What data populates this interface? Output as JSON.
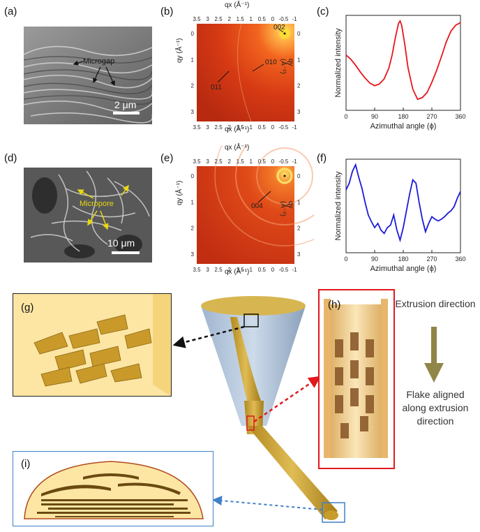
{
  "panel_labels": {
    "a": "(a)",
    "b": "(b)",
    "c": "(c)",
    "d": "(d)",
    "e": "(e)",
    "f": "(f)",
    "g": "(g)",
    "h": "(h)",
    "i": "(i)"
  },
  "sem_a": {
    "annotation": "Microgap",
    "scale": "2 μm"
  },
  "sem_d": {
    "annotation": "Micropore",
    "scale": "10 μm"
  },
  "waxs_b": {
    "xlabel": "qx (Å⁻¹)",
    "ylabel": "qy (Å⁻¹)",
    "xticks": [
      "3.5",
      "3",
      "2.5",
      "2",
      "1.5",
      "1",
      "0.5",
      "0",
      "-0.5",
      "-1"
    ],
    "yticks": [
      "0",
      "1",
      "2",
      "3"
    ],
    "peaks": [
      "002",
      "010",
      "011"
    ]
  },
  "waxs_e": {
    "xlabel": "qx (Å⁻¹)",
    "ylabel": "qy (Å⁻¹)",
    "xticks": [
      "3.5",
      "3",
      "2.5",
      "2",
      "1.5",
      "1",
      "0.5",
      "0",
      "-0.5",
      "-1"
    ],
    "yticks": [
      "0",
      "1",
      "2",
      "3"
    ],
    "peaks": [
      "004"
    ]
  },
  "schematic": {
    "extrusion_label": "Extrusion direction",
    "flake_label": "Flake aligned along extrusion direction"
  },
  "chart_data": [
    {
      "type": "line",
      "panel": "(c)",
      "xlabel": "Azimuthal angle (ϕ)",
      "ylabel": "Normalized intensity",
      "xlim": [
        0,
        360
      ],
      "xticks": [
        "0",
        "90",
        "180",
        "270",
        "360"
      ],
      "color": "#e8151b",
      "x": [
        0,
        15,
        30,
        45,
        60,
        75,
        90,
        105,
        120,
        135,
        145,
        155,
        165,
        170,
        175,
        185,
        195,
        210,
        225,
        240,
        255,
        270,
        285,
        300,
        315,
        330,
        345,
        360
      ],
      "y": [
        0.6,
        0.55,
        0.48,
        0.4,
        0.33,
        0.27,
        0.24,
        0.26,
        0.32,
        0.45,
        0.6,
        0.8,
        0.97,
        1.0,
        0.95,
        0.72,
        0.45,
        0.2,
        0.08,
        0.1,
        0.16,
        0.28,
        0.42,
        0.58,
        0.75,
        0.88,
        0.95,
        0.98
      ]
    },
    {
      "type": "line",
      "panel": "(f)",
      "xlabel": "Azimuthal angle (ϕ)",
      "ylabel": "Normalized intensity",
      "xlim": [
        0,
        360
      ],
      "xticks": [
        "0",
        "90",
        "180",
        "270",
        "360"
      ],
      "color": "#1a1adb",
      "x": [
        0,
        10,
        20,
        30,
        40,
        50,
        60,
        70,
        80,
        90,
        100,
        110,
        120,
        130,
        140,
        150,
        160,
        170,
        180,
        190,
        200,
        210,
        220,
        230,
        240,
        250,
        260,
        270,
        280,
        290,
        300,
        310,
        320,
        330,
        340,
        350,
        360
      ],
      "y": [
        0.7,
        0.78,
        0.92,
        1.0,
        0.85,
        0.72,
        0.55,
        0.4,
        0.32,
        0.25,
        0.3,
        0.22,
        0.18,
        0.25,
        0.28,
        0.4,
        0.22,
        0.1,
        0.25,
        0.45,
        0.65,
        0.82,
        0.78,
        0.55,
        0.35,
        0.2,
        0.3,
        0.38,
        0.35,
        0.33,
        0.35,
        0.38,
        0.42,
        0.45,
        0.5,
        0.6,
        0.68
      ]
    }
  ]
}
